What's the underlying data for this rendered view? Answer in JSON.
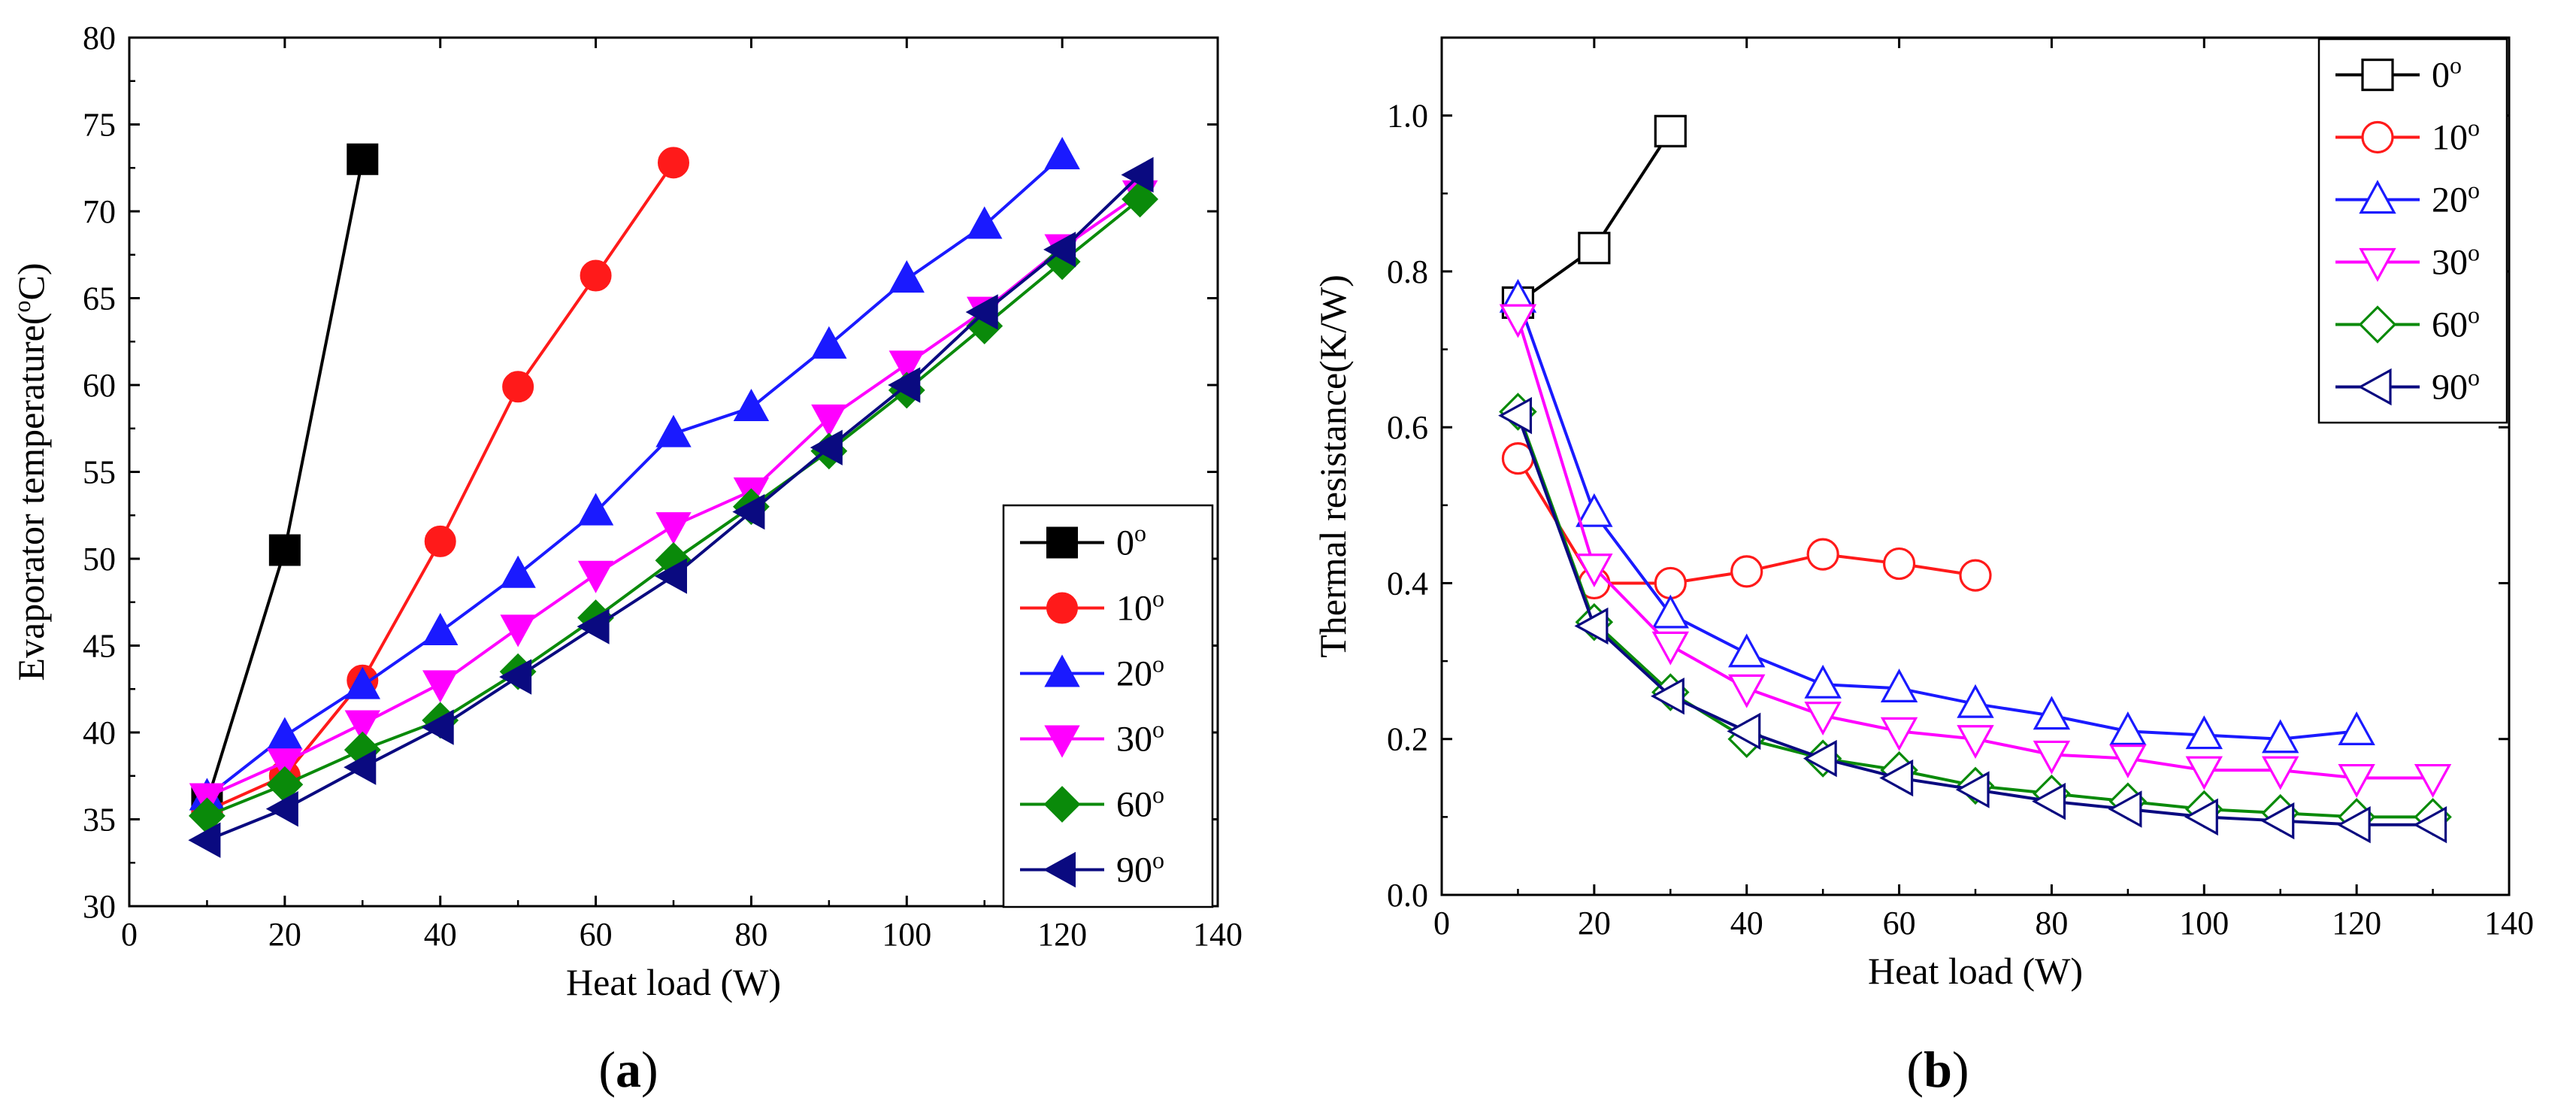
{
  "figure_labels": {
    "a_open": "(",
    "a_letter": "a",
    "a_close": ")",
    "b_open": "(",
    "b_letter": "b",
    "b_close": ")"
  },
  "series_colors": {
    "0o": "#000000",
    "10o": "#ff1a1a",
    "20o": "#1a1aff",
    "30o": "#ff00ff",
    "60o": "#0a8a0a",
    "90o": "#0a0a80"
  },
  "chart_data": [
    {
      "type": "line",
      "panel": "a",
      "xlabel": "Heat load (W)",
      "ylabel": "Evaporator temperature(oC)",
      "xlim": [
        0,
        140
      ],
      "ylim": [
        30,
        80
      ],
      "xticks": [
        0,
        20,
        40,
        60,
        80,
        100,
        120,
        140
      ],
      "yticks": [
        30,
        35,
        40,
        45,
        50,
        55,
        60,
        65,
        70,
        75,
        80
      ],
      "grid": false,
      "legend_position": "right",
      "marker_fill": "filled",
      "series": [
        {
          "name": "0o",
          "label": "0",
          "marker": "square",
          "color": "#000000",
          "x": [
            10,
            20,
            30
          ],
          "y": [
            36.0,
            50.5,
            73.0
          ]
        },
        {
          "name": "10o",
          "label": "10",
          "marker": "circle",
          "color": "#ff1a1a",
          "x": [
            10,
            20,
            30,
            40,
            50,
            60,
            70
          ],
          "y": [
            35.5,
            37.5,
            43.0,
            51.0,
            59.9,
            66.3,
            72.8
          ]
        },
        {
          "name": "20o",
          "label": "20",
          "marker": "triangle-up",
          "color": "#1a1aff",
          "x": [
            10,
            20,
            30,
            40,
            50,
            60,
            70,
            80,
            90,
            100,
            110,
            120
          ],
          "y": [
            36.3,
            39.8,
            42.7,
            45.8,
            49.1,
            52.7,
            57.2,
            58.7,
            62.3,
            66.1,
            69.2,
            73.2
          ]
        },
        {
          "name": "30o",
          "label": "30",
          "marker": "triangle-down",
          "color": "#ff00ff",
          "x": [
            10,
            20,
            30,
            40,
            50,
            60,
            70,
            80,
            90,
            100,
            110,
            120,
            130
          ],
          "y": [
            36.3,
            38.3,
            40.5,
            42.8,
            46.0,
            49.1,
            51.9,
            53.9,
            58.1,
            61.2,
            64.3,
            67.9,
            71.0
          ]
        },
        {
          "name": "60o",
          "label": "60",
          "marker": "diamond",
          "color": "#0a8a0a",
          "x": [
            10,
            20,
            30,
            40,
            50,
            60,
            70,
            80,
            90,
            100,
            110,
            120,
            130
          ],
          "y": [
            35.2,
            37.0,
            39.0,
            40.7,
            43.5,
            46.6,
            49.9,
            53.0,
            56.2,
            59.7,
            63.4,
            67.1,
            70.7
          ]
        },
        {
          "name": "90o",
          "label": "90",
          "marker": "triangle-left",
          "color": "#0a0a80",
          "x": [
            10,
            20,
            30,
            40,
            50,
            60,
            70,
            80,
            90,
            100,
            110,
            120,
            130
          ],
          "y": [
            33.8,
            35.6,
            38.0,
            40.3,
            43.2,
            46.1,
            49.0,
            52.7,
            56.4,
            60.0,
            64.2,
            67.8,
            72.1
          ]
        }
      ]
    },
    {
      "type": "line",
      "panel": "b",
      "xlabel": "Heat load (W)",
      "ylabel": "Thermal resistance(K/W)",
      "xlim": [
        0,
        140
      ],
      "ylim": [
        0.0,
        1.1
      ],
      "xticks": [
        0,
        20,
        40,
        60,
        80,
        100,
        120,
        140
      ],
      "yticks": [
        0.0,
        0.2,
        0.4,
        0.6,
        0.8,
        1.0
      ],
      "ytick_labels": [
        "0.0",
        "0.2",
        "0.4",
        "0.6",
        "0.8",
        "1.0"
      ],
      "grid": false,
      "legend_position": "top-right",
      "marker_fill": "hollow",
      "series": [
        {
          "name": "0o",
          "label": "0",
          "marker": "square",
          "color": "#000000",
          "x": [
            10,
            20,
            30
          ],
          "y": [
            0.76,
            0.83,
            0.98
          ]
        },
        {
          "name": "10o",
          "label": "10",
          "marker": "circle",
          "color": "#ff1a1a",
          "x": [
            10,
            20,
            30,
            40,
            50,
            60,
            70
          ],
          "y": [
            0.56,
            0.4,
            0.4,
            0.415,
            0.437,
            0.425,
            0.41
          ]
        },
        {
          "name": "20o",
          "label": "20",
          "marker": "triangle-up",
          "color": "#1a1aff",
          "x": [
            10,
            20,
            30,
            40,
            50,
            60,
            70,
            80,
            90,
            100,
            110,
            120
          ],
          "y": [
            0.765,
            0.49,
            0.36,
            0.31,
            0.27,
            0.265,
            0.245,
            0.23,
            0.21,
            0.205,
            0.2,
            0.21
          ]
        },
        {
          "name": "30o",
          "label": "30",
          "marker": "triangle-down",
          "color": "#ff00ff",
          "x": [
            10,
            20,
            30,
            40,
            50,
            60,
            70,
            80,
            90,
            100,
            110,
            120,
            130
          ],
          "y": [
            0.74,
            0.42,
            0.32,
            0.265,
            0.23,
            0.21,
            0.2,
            0.18,
            0.175,
            0.16,
            0.16,
            0.15,
            0.15
          ]
        },
        {
          "name": "60o",
          "label": "60",
          "marker": "diamond",
          "color": "#0a8a0a",
          "x": [
            10,
            20,
            30,
            40,
            50,
            60,
            70,
            80,
            90,
            100,
            110,
            120,
            130
          ],
          "y": [
            0.62,
            0.35,
            0.26,
            0.2,
            0.175,
            0.16,
            0.14,
            0.13,
            0.12,
            0.11,
            0.105,
            0.1,
            0.1
          ]
        },
        {
          "name": "90o",
          "label": "90",
          "marker": "triangle-left",
          "color": "#0a0a80",
          "x": [
            10,
            20,
            30,
            40,
            50,
            60,
            70,
            80,
            90,
            100,
            110,
            120,
            130
          ],
          "y": [
            0.615,
            0.345,
            0.255,
            0.21,
            0.175,
            0.15,
            0.135,
            0.12,
            0.11,
            0.1,
            0.095,
            0.09,
            0.09
          ]
        }
      ]
    }
  ]
}
